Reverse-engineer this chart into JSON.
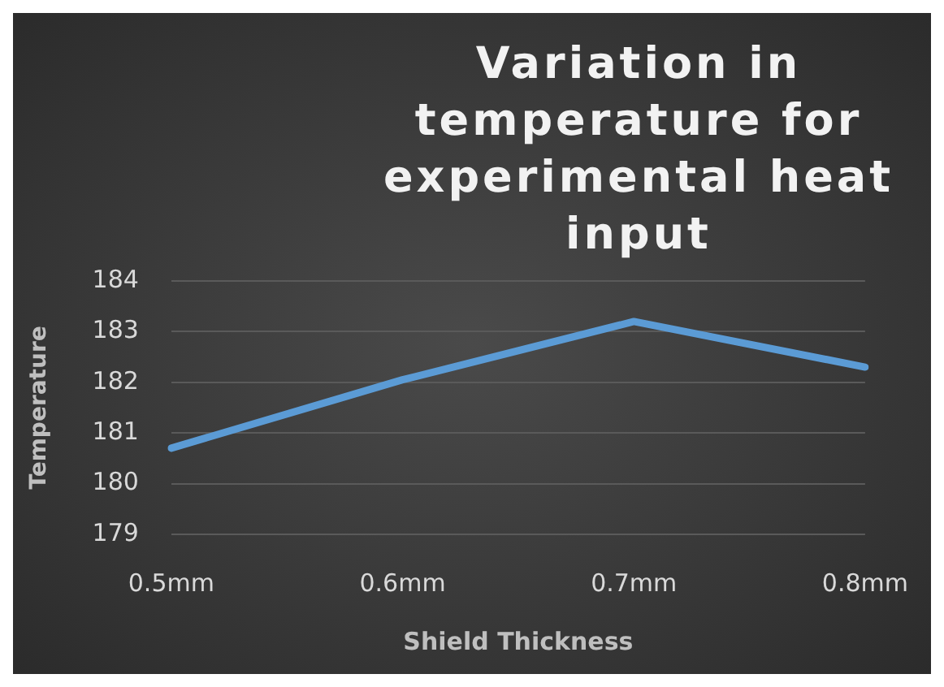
{
  "chart_data": {
    "type": "line",
    "title": "Variation in temperature for experimental heat input",
    "xlabel": "Shield Thickness",
    "ylabel": "Temperature",
    "categories": [
      "0.5mm",
      "0.6mm",
      "0.7mm",
      "0.8mm"
    ],
    "series": [
      {
        "color": "#5b9bd5",
        "values": [
          180.7,
          182.05,
          183.2,
          182.3
        ]
      }
    ],
    "ylim": [
      179,
      184
    ],
    "yticks": [
      179,
      180,
      181,
      182,
      183,
      184
    ],
    "grid": "y",
    "legend": false,
    "marker": "none",
    "line_style": "solid"
  }
}
